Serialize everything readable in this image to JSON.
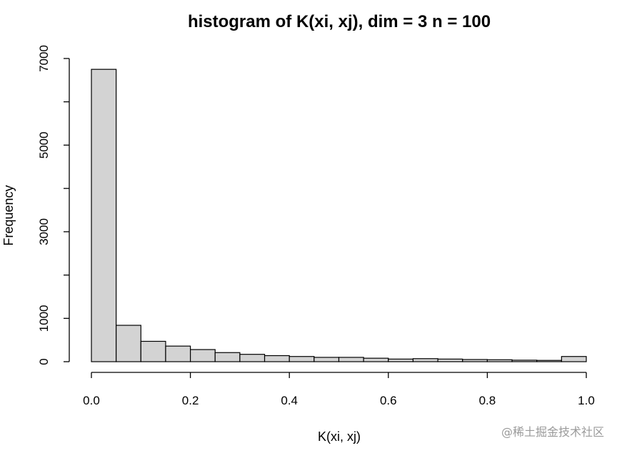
{
  "chart_data": {
    "type": "bar",
    "title": "histogram of K(xi, xj), dim = 3 n = 100",
    "xlabel": "K(xi, xj)",
    "ylabel": "Frequency",
    "bin_edges": [
      0.0,
      0.05,
      0.1,
      0.15,
      0.2,
      0.25,
      0.3,
      0.35,
      0.4,
      0.45,
      0.5,
      0.55,
      0.6,
      0.65,
      0.7,
      0.75,
      0.8,
      0.85,
      0.9,
      0.95,
      1.0
    ],
    "values": [
      6750,
      840,
      470,
      360,
      280,
      210,
      170,
      140,
      120,
      100,
      100,
      80,
      60,
      70,
      60,
      50,
      45,
      35,
      30,
      120
    ],
    "xlim": [
      0.0,
      1.0
    ],
    "ylim": [
      0,
      7000
    ],
    "x_ticks": [
      0.0,
      0.2,
      0.4,
      0.6,
      0.8,
      1.0
    ],
    "x_tick_labels": [
      "0.0",
      "0.2",
      "0.4",
      "0.6",
      "0.8",
      "1.0"
    ],
    "y_ticks": [
      0,
      1000,
      2000,
      3000,
      4000,
      5000,
      6000,
      7000
    ],
    "y_tick_labels": [
      "0",
      "1000",
      "3000",
      "5000",
      "7000"
    ],
    "y_labeled_ticks": [
      0,
      1000,
      3000,
      5000,
      7000
    ],
    "bar_color": "#d3d3d3",
    "grid": false
  },
  "watermark": "@稀土掘金技术社区"
}
